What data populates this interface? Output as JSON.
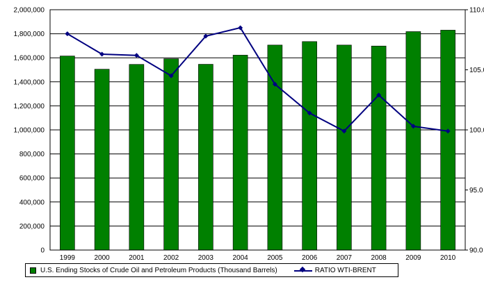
{
  "chart_data": {
    "type": "bar",
    "categories": [
      "1999",
      "2000",
      "2001",
      "2002",
      "2003",
      "2004",
      "2005",
      "2006",
      "2007",
      "2008",
      "2009",
      "2010"
    ],
    "series": [
      {
        "name": "U.S. Ending Stocks of Crude Oil and Petroleum Products (Thousand Barrels)",
        "type": "bar",
        "axis": "left",
        "values": [
          1615000,
          1505000,
          1545000,
          1592000,
          1546000,
          1622000,
          1706000,
          1735000,
          1706000,
          1698000,
          1818000,
          1830000
        ]
      },
      {
        "name": "RATIO WTI-BRENT",
        "type": "line",
        "axis": "right",
        "values": [
          108.0,
          106.3,
          106.2,
          104.5,
          107.8,
          108.5,
          103.8,
          101.4,
          99.9,
          102.9,
          100.3,
          99.9
        ]
      }
    ],
    "left_axis": {
      "ylim": [
        0,
        2000000
      ],
      "ticks": [
        "0",
        "200,000",
        "400,000",
        "600,000",
        "800,000",
        "1,000,000",
        "1,200,000",
        "1,400,000",
        "1,600,000",
        "1,800,000",
        "2,000,000"
      ]
    },
    "right_axis": {
      "ylim": [
        90,
        110
      ],
      "ticks": [
        "90.0",
        "95.0",
        "100.0",
        "105.0",
        "110.0"
      ]
    },
    "grid": true,
    "legend": "bottom",
    "colors": {
      "bars": "#008000",
      "line": "#000080"
    }
  }
}
